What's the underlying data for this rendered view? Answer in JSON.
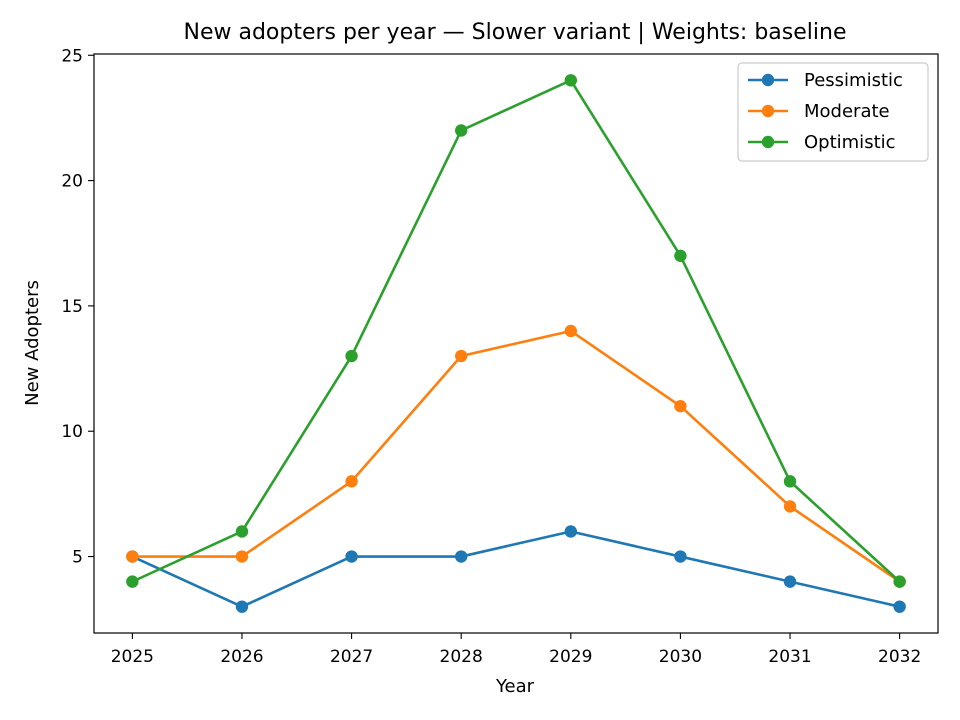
{
  "chart_data": {
    "type": "line",
    "title": "New adopters per year — Slower variant | Weights: baseline",
    "xlabel": "Year",
    "ylabel": "New Adopters",
    "x": [
      2025,
      2026,
      2027,
      2028,
      2029,
      2030,
      2031,
      2032
    ],
    "xlim": [
      2024.65,
      2032.35
    ],
    "ylim": [
      1.95,
      25.05
    ],
    "yticks": [
      5,
      10,
      15,
      20,
      25
    ],
    "grid": false,
    "legend_position": "top-right",
    "series": [
      {
        "name": "Pessimistic",
        "color": "#1f77b4",
        "values": [
          5,
          3,
          5,
          5,
          6,
          5,
          4,
          3
        ]
      },
      {
        "name": "Moderate",
        "color": "#ff7f0e",
        "values": [
          5,
          5,
          8,
          13,
          14,
          11,
          7,
          4
        ]
      },
      {
        "name": "Optimistic",
        "color": "#2ca02c",
        "values": [
          4,
          6,
          13,
          22,
          24,
          17,
          8,
          4
        ]
      }
    ]
  }
}
